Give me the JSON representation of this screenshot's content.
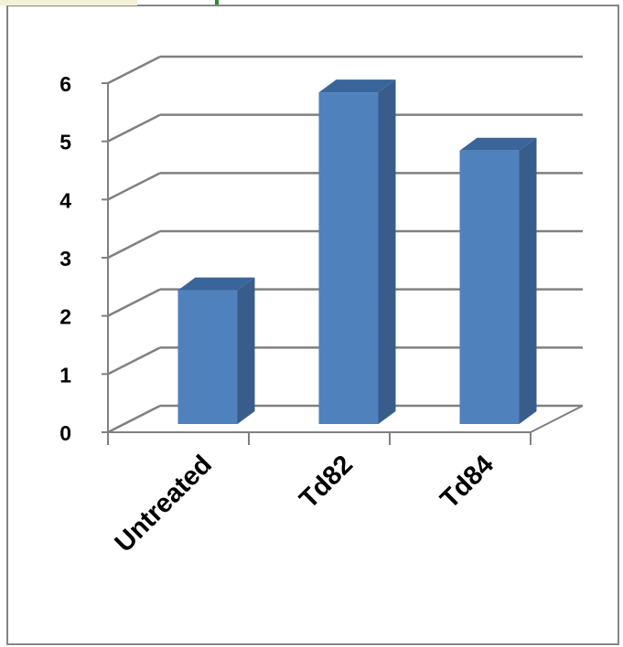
{
  "chart_data": {
    "type": "bar",
    "categories": [
      "Untreated",
      "Td82",
      "Td84"
    ],
    "values": [
      2.3,
      5.7,
      4.7
    ],
    "ylim": [
      0,
      6
    ],
    "yticks": [
      "0",
      "1",
      "2",
      "3",
      "4",
      "5",
      "6"
    ],
    "grid": true,
    "legend": "none",
    "colors": {
      "bar_front": "#4f81bd",
      "bar_side": "#385d8a",
      "bar_top": "#3a659a",
      "gridline": "#808080",
      "frame": "#868686"
    }
  }
}
